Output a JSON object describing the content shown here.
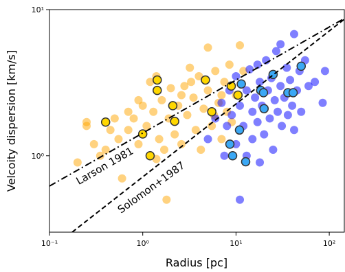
{
  "chart_data": {
    "type": "scatter",
    "xlabel": "Radius [pc]",
    "ylabel": "Velcoity dispersion [km/s]",
    "xscale": "log",
    "yscale": "log",
    "xlim": [
      0.1,
      145
    ],
    "ylim": [
      0.3,
      10
    ],
    "xticks": [
      {
        "value": 0.1,
        "label": "10⁻¹"
      },
      {
        "value": 1,
        "label": "10⁰"
      },
      {
        "value": 10,
        "label": "10¹"
      },
      {
        "value": 100,
        "label": "10²"
      }
    ],
    "yticks": [
      {
        "value": 1,
        "label": "10⁰"
      },
      {
        "value": 10,
        "label": "10¹"
      }
    ],
    "series": [
      {
        "color": "#ffa500",
        "alpha": 0.5,
        "x": [
          0.2,
          0.25,
          0.25,
          0.3,
          0.4,
          0.45,
          0.5,
          0.55,
          0.6,
          0.7,
          0.7,
          0.8,
          0.9,
          1.0,
          1.1,
          1.2,
          1.3,
          1.4,
          1.5,
          1.6,
          1.7,
          1.8,
          1.9,
          2.0,
          2.2,
          2.4,
          2.6,
          2.8,
          3.0,
          3.2,
          3.5,
          3.7,
          4.0,
          4.2,
          4.5,
          5.0,
          5.0,
          5.5,
          6.0,
          6.5,
          7.0,
          7.5,
          8.0,
          8.5,
          9.0,
          10,
          11,
          12,
          0.35,
          0.9,
          1.4,
          2.6,
          3.3,
          5.8,
          7
        ],
        "values": [
          0.9,
          1.6,
          1.7,
          1.2,
          1.1,
          1.5,
          1.8,
          1.3,
          0.7,
          2.0,
          1.5,
          1.8,
          1.2,
          2.2,
          1.6,
          3.2,
          2.0,
          3.5,
          1.3,
          2.4,
          1.1,
          0.5,
          1.8,
          2.9,
          1.4,
          2.2,
          1.2,
          3.0,
          1.9,
          4.0,
          2.5,
          1.5,
          3.5,
          1.1,
          2.1,
          5.5,
          2.8,
          1.6,
          3.8,
          2.3,
          1.3,
          3.2,
          2.0,
          4.2,
          1.7,
          2.6,
          5.7,
          3.8,
          1.0,
          2.4,
          0.95,
          2.6,
          3.2,
          1.9,
          2.6
        ]
      },
      {
        "color": "#0000ff",
        "alpha": 0.5,
        "x": [
          5,
          6,
          7,
          7.5,
          8,
          8.5,
          9,
          10,
          10,
          11,
          11,
          12,
          13,
          13,
          14,
          15,
          15,
          16,
          17,
          18,
          18,
          19,
          20,
          21,
          22,
          23,
          24,
          25,
          26,
          27,
          28,
          30,
          31,
          33,
          35,
          36,
          38,
          40,
          42,
          42,
          45,
          48,
          50,
          55,
          60,
          70,
          85,
          90,
          30,
          17
        ],
        "values": [
          1.3,
          1.8,
          2.3,
          1.0,
          1.6,
          2.8,
          1.9,
          1.2,
          3.5,
          0.5,
          2.2,
          1.6,
          2.8,
          1.0,
          3.9,
          2.0,
          1.3,
          2.5,
          1.7,
          3.2,
          0.9,
          2.2,
          1.4,
          4.5,
          2.8,
          1.8,
          3.4,
          1.1,
          2.4,
          5.2,
          2.0,
          3.0,
          1.6,
          2.5,
          4.0,
          1.9,
          3.3,
          2.2,
          6.8,
          1.5,
          2.8,
          3.8,
          2.0,
          4.5,
          3.0,
          3.2,
          2.3,
          3.8,
          5.8,
          4.2
        ]
      },
      {
        "color": "#ffd700",
        "alpha": 1,
        "edgecolor": "#333333",
        "x": [
          0.4,
          1.0,
          1.43,
          1.43,
          2.1,
          2.2,
          4.7,
          5.5,
          1.2,
          8.9,
          10.5
        ],
        "values": [
          1.7,
          1.41,
          3.3,
          2.8,
          2.2,
          1.72,
          3.3,
          2.0,
          1.0,
          3.0,
          2.6
        ]
      },
      {
        "color": "#3ba8f5",
        "alpha": 1,
        "edgecolor": "#333333",
        "x": [
          11.4,
          18.4,
          19.7,
          25,
          36,
          41,
          50,
          20,
          10.9,
          8.6,
          9.2,
          12.7
        ],
        "values": [
          3.1,
          2.8,
          2.7,
          3.6,
          2.7,
          2.7,
          4.1,
          2.1,
          1.5,
          1.2,
          1.0,
          0.91
        ]
      }
    ],
    "lines": [
      {
        "x": [
          0.1,
          145
        ],
        "values": [
          0.62,
          8.7
        ],
        "linestyle": "dashdot",
        "color": "#000000"
      },
      {
        "x": [
          0.175,
          145
        ],
        "values": [
          0.3,
          8.6
        ],
        "linestyle": "dashed",
        "color": "#000000"
      }
    ],
    "annotations": [
      "Larson 1981",
      "Solomon+1987"
    ]
  }
}
